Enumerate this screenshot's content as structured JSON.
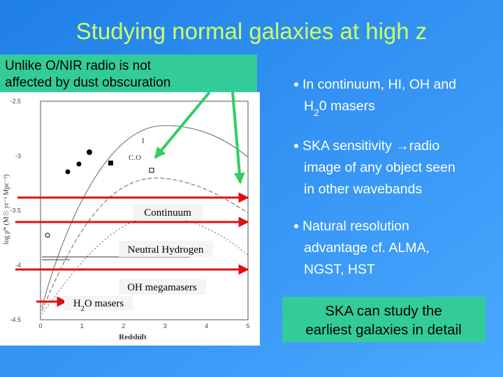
{
  "title": "Studying normal galaxies at high z",
  "callout": [
    "Unlike O/NIR radio is not",
    "affected by dust obscuration"
  ],
  "plot": {
    "x_label": "Redshift",
    "y_label": "log ρ̇* (M☉ yr⁻¹ Mpc⁻³)",
    "x_ticks": [
      "0",
      "1",
      "2",
      "3",
      "4",
      "5"
    ],
    "y_ticks": [
      "-2.5",
      "-3",
      "-3.5",
      "-4",
      "-4.5"
    ],
    "annotations": [
      "I",
      "C.O"
    ]
  },
  "bands": [
    [
      "Continuum"
    ],
    [
      "Neutral Hydrogen"
    ],
    [
      "OH megamasers"
    ],
    [
      "H",
      "2",
      "O masers"
    ]
  ],
  "bullets": [
    [
      [
        "In continuum, HI, OH and"
      ],
      [
        "H",
        "2",
        "0 masers"
      ]
    ],
    [
      [
        "SKA sensitivity →radio"
      ],
      [
        "image of any object seen"
      ],
      [
        "in other wavebands"
      ]
    ],
    [
      [
        "Natural resolution"
      ],
      [
        "advantage cf. ALMA,"
      ],
      [
        "NGST, HST"
      ]
    ]
  ],
  "conclusion": [
    "SKA can study the",
    "earliest galaxies in detail"
  ]
}
